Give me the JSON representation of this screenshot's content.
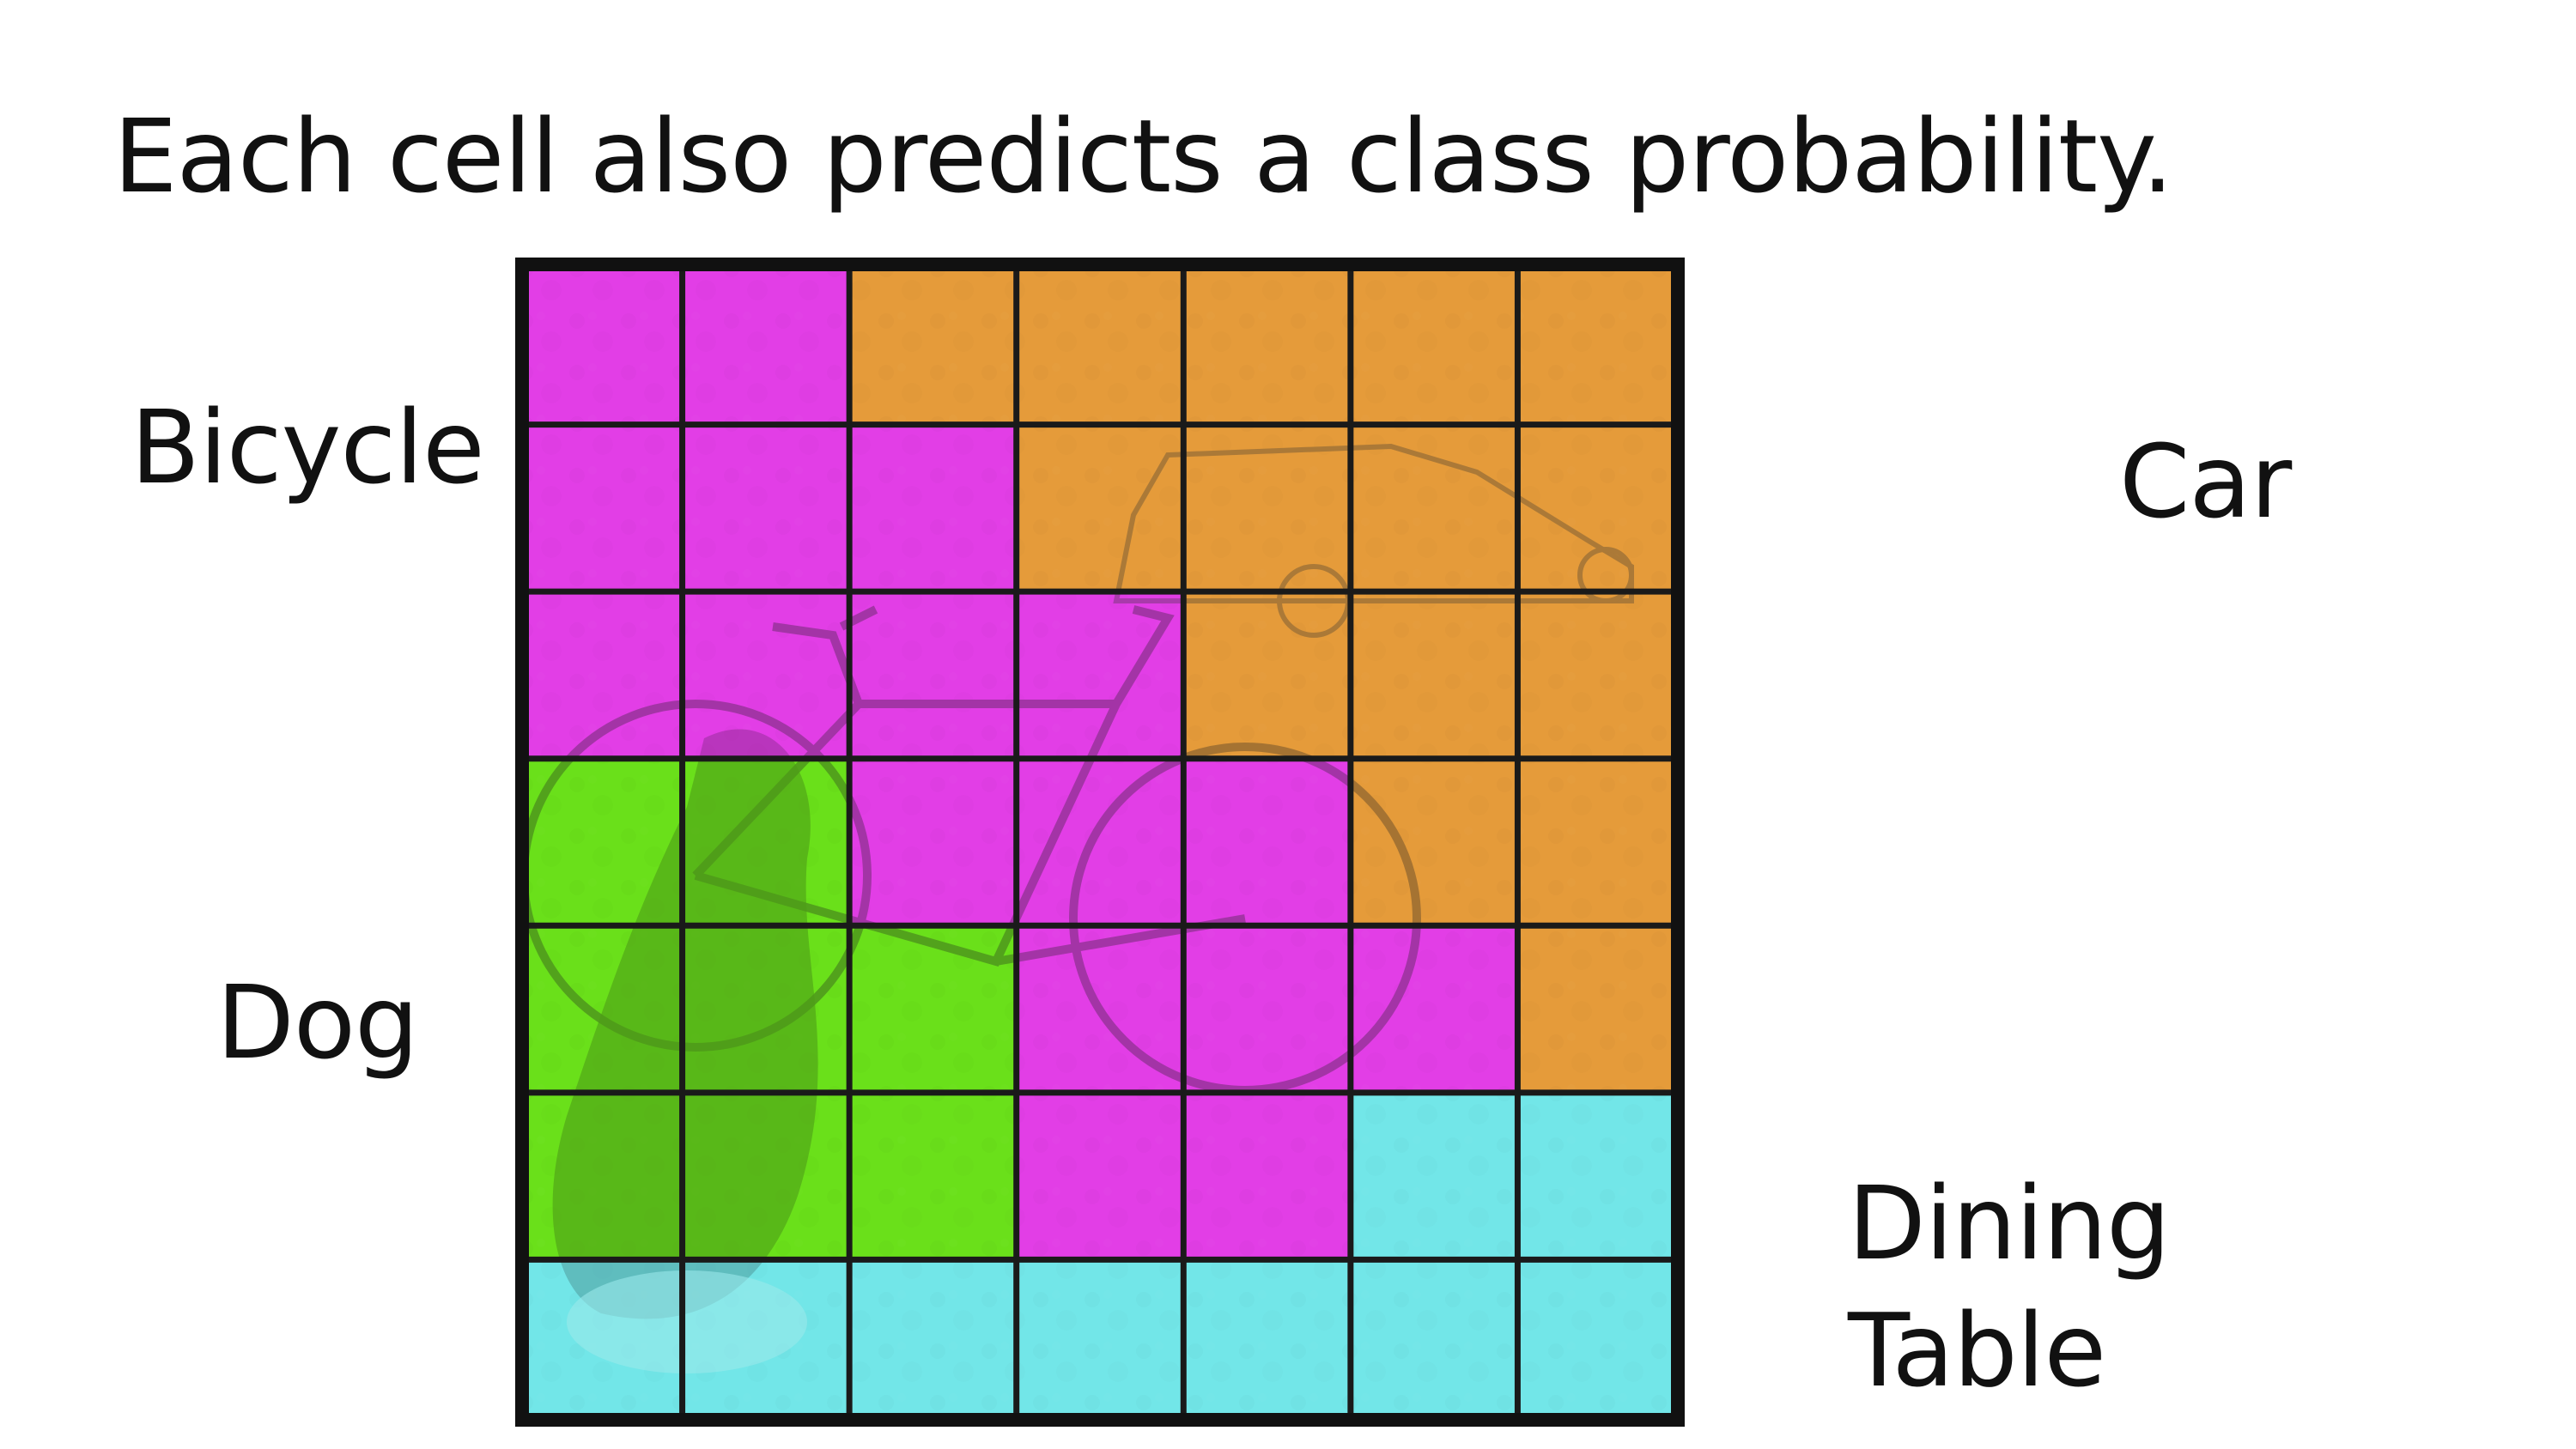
{
  "title": "Each cell also predicts a class probability.",
  "labels": {
    "bicycle": "Bicycle",
    "car": "Car",
    "dog": "Dog",
    "dining_table_line1": "Dining",
    "dining_table_line2": "Table"
  },
  "colors": {
    "bicycle": "#e23ee6",
    "car": "#e59b3a",
    "dog": "#6ae01a",
    "dining_table": "#72e6e8",
    "grid_line": "#1a1a1a"
  },
  "grid": {
    "rows": 7,
    "cols": 7,
    "cells": [
      [
        "bicycle",
        "bicycle",
        "car",
        "car",
        "car",
        "car",
        "car"
      ],
      [
        "bicycle",
        "bicycle",
        "bicycle",
        "car",
        "car",
        "car",
        "car"
      ],
      [
        "bicycle",
        "bicycle",
        "bicycle",
        "bicycle",
        "car",
        "car",
        "car"
      ],
      [
        "dog",
        "dog",
        "bicycle",
        "bicycle",
        "bicycle",
        "car",
        "car"
      ],
      [
        "dog",
        "dog",
        "dog",
        "bicycle",
        "bicycle",
        "bicycle",
        "car"
      ],
      [
        "dog",
        "dog",
        "dog",
        "bicycle",
        "bicycle",
        "dining_table",
        "dining_table"
      ],
      [
        "dining_table",
        "dining_table",
        "dining_table",
        "dining_table",
        "dining_table",
        "dining_table",
        "dining_table"
      ]
    ]
  }
}
